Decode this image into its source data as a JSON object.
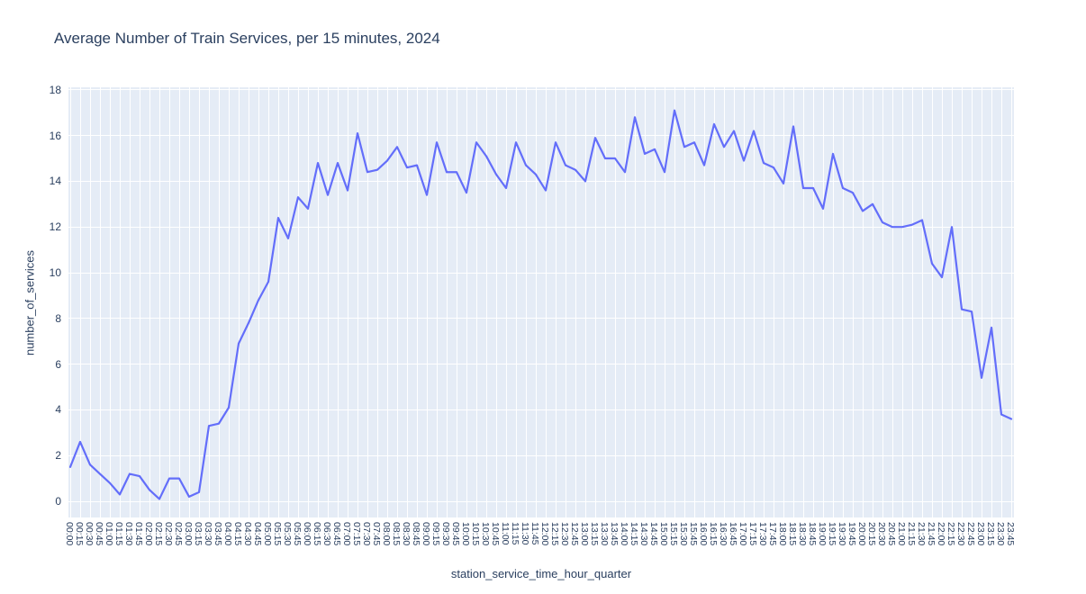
{
  "chart_data": {
    "type": "line",
    "title": "Average Number of Train Services, per 15 minutes, 2024",
    "xlabel": "station_service_time_hour_quarter",
    "ylabel": "number_of_services",
    "legend": "none",
    "grid": true,
    "ylim": [
      0,
      18
    ],
    "yticks": [
      0,
      2,
      4,
      6,
      8,
      10,
      12,
      14,
      16,
      18
    ],
    "line_color": "#636EFA",
    "plot_bg_color": "#E5ECF6",
    "grid_color": "#FFFFFF",
    "text_color": "#2a3f5f",
    "x": [
      "00:00",
      "00:15",
      "00:30",
      "00:45",
      "01:00",
      "01:15",
      "01:30",
      "01:45",
      "02:00",
      "02:15",
      "02:30",
      "02:45",
      "03:00",
      "03:15",
      "03:30",
      "03:45",
      "04:00",
      "04:15",
      "04:30",
      "04:45",
      "05:00",
      "05:15",
      "05:30",
      "05:45",
      "06:00",
      "06:15",
      "06:30",
      "06:45",
      "07:00",
      "07:15",
      "07:30",
      "07:45",
      "08:00",
      "08:15",
      "08:30",
      "08:45",
      "09:00",
      "09:15",
      "09:30",
      "09:45",
      "10:00",
      "10:15",
      "10:30",
      "10:45",
      "11:00",
      "11:15",
      "11:30",
      "11:45",
      "12:00",
      "12:15",
      "12:30",
      "12:45",
      "13:00",
      "13:15",
      "13:30",
      "13:45",
      "14:00",
      "14:15",
      "14:30",
      "14:45",
      "15:00",
      "15:15",
      "15:30",
      "15:45",
      "16:00",
      "16:15",
      "16:30",
      "16:45",
      "17:00",
      "17:15",
      "17:30",
      "17:45",
      "18:00",
      "18:15",
      "18:30",
      "18:45",
      "19:00",
      "19:15",
      "19:30",
      "19:45",
      "20:00",
      "20:15",
      "20:30",
      "20:45",
      "21:00",
      "21:15",
      "21:30",
      "21:45",
      "22:00",
      "22:15",
      "22:30",
      "22:45",
      "23:00",
      "23:15",
      "23:30",
      "23:45"
    ],
    "values": [
      1.5,
      2.6,
      1.6,
      1.2,
      0.8,
      0.3,
      1.2,
      1.1,
      0.5,
      0.1,
      1.0,
      1.0,
      0.2,
      0.4,
      3.3,
      3.4,
      4.1,
      6.9,
      7.8,
      8.8,
      9.6,
      12.4,
      11.5,
      13.3,
      12.8,
      14.8,
      13.4,
      14.8,
      13.6,
      16.1,
      14.4,
      14.5,
      14.9,
      15.5,
      14.6,
      14.7,
      13.4,
      15.7,
      14.4,
      14.4,
      13.5,
      15.7,
      15.1,
      14.3,
      13.7,
      15.7,
      14.7,
      14.3,
      13.6,
      15.7,
      14.7,
      14.5,
      14.0,
      15.9,
      15.0,
      15.0,
      14.4,
      16.8,
      15.2,
      15.4,
      14.4,
      17.1,
      15.5,
      15.7,
      14.7,
      16.5,
      15.5,
      16.2,
      14.9,
      16.2,
      14.8,
      14.6,
      13.9,
      16.4,
      13.7,
      13.7,
      12.8,
      15.2,
      13.7,
      13.5,
      12.7,
      13.0,
      12.2,
      12.0,
      12.0,
      12.1,
      12.3,
      10.4,
      9.8,
      12.0,
      8.4,
      8.3,
      5.4,
      7.6,
      3.8,
      3.6
    ]
  }
}
